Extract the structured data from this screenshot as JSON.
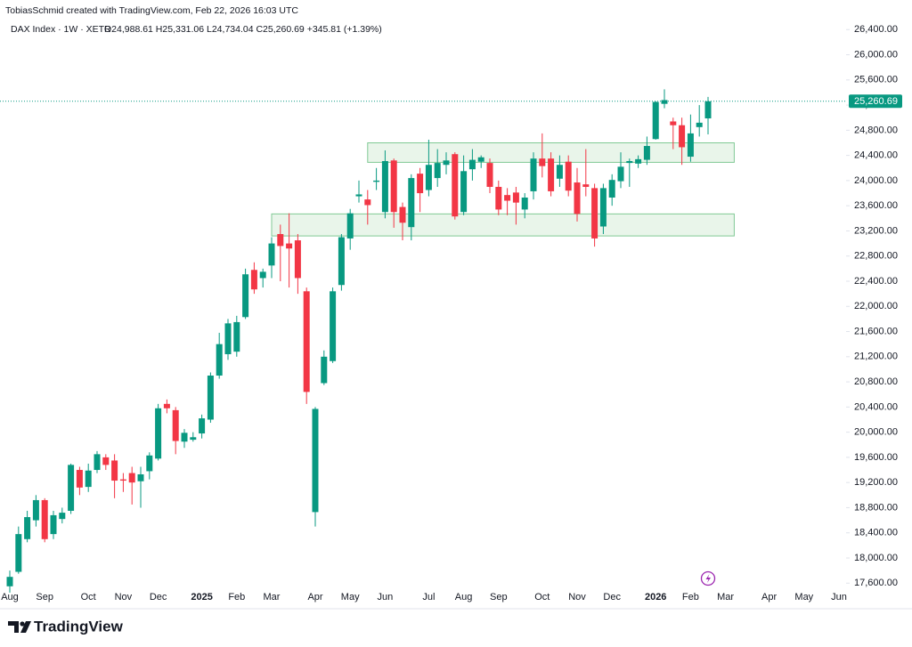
{
  "header": {
    "credit": "TobiasSchmid created with TradingView.com, Feb 22, 2026 16:03 UTC"
  },
  "chart_data": {
    "type": "candlestick",
    "legend": {
      "symbol": "DAX Index · 1W · XETR",
      "ohlc": "O24,988.61 H25,331.06 L24,734.04 C25,260.69 +345.81 (+1.39%)"
    },
    "categories": [
      "Aug",
      null,
      null,
      null,
      "Sep",
      null,
      null,
      null,
      null,
      "Oct",
      null,
      null,
      null,
      "Nov",
      null,
      null,
      null,
      "Dec",
      null,
      null,
      null,
      null,
      "2025",
      null,
      null,
      null,
      "Feb",
      null,
      null,
      null,
      "Mar",
      null,
      null,
      null,
      null,
      "Apr",
      null,
      null,
      null,
      "May",
      null,
      null,
      null,
      "Jun",
      null,
      null,
      null,
      null,
      "Jul",
      null,
      null,
      null,
      "Aug",
      null,
      null,
      null,
      "Sep",
      null,
      null,
      null,
      null,
      "Oct",
      null,
      null,
      null,
      "Nov",
      null,
      null,
      null,
      "Dec",
      null,
      null,
      null,
      null,
      "2026",
      null,
      null,
      null,
      "Feb",
      null,
      null,
      null,
      "Mar",
      null,
      null,
      null,
      null,
      "Apr",
      null,
      null,
      null,
      "May",
      null,
      null,
      null,
      "Jun"
    ],
    "open": [
      17550,
      17780,
      18300,
      18600,
      18920,
      18380,
      18620,
      18750,
      19400,
      19130,
      19400,
      19600,
      19550,
      19250,
      19350,
      19220,
      19380,
      19580,
      20450,
      20350,
      19850,
      19880,
      19980,
      20200,
      20900,
      21240,
      21280,
      21830,
      22580,
      22450,
      22650,
      23150,
      23000,
      23050,
      22240,
      18730,
      20780,
      21130,
      22340,
      23080,
      23750,
      23700,
      23980,
      23500,
      24320,
      23580,
      23260,
      24110,
      23850,
      24040,
      24250,
      24420,
      23500,
      24180,
      24300,
      24280,
      23900,
      23770,
      23810,
      23540,
      23830,
      24350,
      24350,
      24030,
      24300,
      23970,
      23940,
      23880,
      23270,
      23730,
      23990,
      24280,
      24270,
      24330,
      24660,
      25220,
      24940,
      24880,
      24380,
      24850,
      24988.61,
      null,
      null,
      null,
      null,
      null,
      null,
      null,
      null,
      null,
      null,
      null,
      null,
      null,
      null,
      null
    ],
    "high": [
      17800,
      18500,
      18750,
      19000,
      18950,
      18750,
      18800,
      19500,
      19450,
      19500,
      19700,
      19650,
      19650,
      19350,
      19450,
      19450,
      19680,
      20450,
      20520,
      20400,
      20050,
      20000,
      20280,
      20950,
      21580,
      21800,
      21850,
      22600,
      22700,
      22600,
      23100,
      23300,
      23480,
      23150,
      22300,
      20400,
      21300,
      22300,
      23150,
      23550,
      24000,
      23850,
      24200,
      24480,
      24350,
      23650,
      24100,
      24200,
      24650,
      24500,
      24450,
      24450,
      24400,
      24500,
      24400,
      24350,
      24000,
      23880,
      23900,
      23800,
      24450,
      24750,
      24450,
      24400,
      24400,
      24200,
      24500,
      23950,
      23950,
      24100,
      24450,
      24350,
      24400,
      24700,
      25260,
      25450,
      25000,
      25000,
      25050,
      25200,
      25331.06,
      null,
      null,
      null,
      null,
      null,
      null,
      null,
      null,
      null,
      null,
      null,
      null,
      null,
      null,
      null
    ],
    "low": [
      17450,
      17750,
      18250,
      18500,
      18250,
      18300,
      18550,
      18700,
      19000,
      19050,
      19350,
      19400,
      18950,
      19050,
      18850,
      18800,
      19250,
      19550,
      20300,
      19650,
      19750,
      19850,
      19900,
      20150,
      20850,
      21150,
      21200,
      21800,
      22200,
      22300,
      22450,
      22400,
      22300,
      22200,
      20450,
      18500,
      20750,
      21100,
      22250,
      22900,
      23650,
      23300,
      23850,
      23400,
      23250,
      23050,
      23050,
      23500,
      23750,
      23900,
      24100,
      23380,
      23450,
      24000,
      24200,
      23800,
      23450,
      23450,
      23300,
      23400,
      23700,
      24050,
      23750,
      23900,
      23750,
      23350,
      23750,
      22950,
      23150,
      23600,
      23880,
      23900,
      24200,
      24250,
      24650,
      25150,
      24500,
      24250,
      24300,
      24700,
      24734.04,
      null,
      null,
      null,
      null,
      null,
      null,
      null,
      null,
      null,
      null,
      null,
      null,
      null,
      null,
      null
    ],
    "close": [
      17700,
      18380,
      18650,
      18920,
      18300,
      18680,
      18720,
      19480,
      19120,
      19390,
      19650,
      19480,
      19230,
      19230,
      19200,
      19330,
      19630,
      20380,
      20380,
      19860,
      19990,
      19920,
      20220,
      20900,
      21400,
      21730,
      21750,
      22510,
      22270,
      22550,
      23000,
      22960,
      22920,
      22450,
      20640,
      20370,
      21200,
      22240,
      23100,
      23480,
      23780,
      23610,
      24000,
      24310,
      23500,
      23330,
      24040,
      23800,
      24250,
      24280,
      24320,
      23430,
      24150,
      24330,
      24370,
      23900,
      23540,
      23680,
      23650,
      23730,
      24350,
      24230,
      23830,
      24250,
      23840,
      23470,
      23900,
      23080,
      23880,
      24010,
      24220,
      24310,
      24340,
      24550,
      25250,
      25280,
      24880,
      24530,
      24750,
      24920,
      25260.69,
      null,
      null,
      null,
      null,
      null,
      null,
      null,
      null,
      null,
      null,
      null,
      null,
      null,
      null,
      null
    ],
    "up_color": "#089981",
    "down_color": "#f23645",
    "zones": [
      {
        "start": 41,
        "end": 83,
        "low": 24290,
        "high": 24600
      },
      {
        "start": 30,
        "end": 83,
        "low": 23120,
        "high": 23470
      }
    ],
    "last_price": {
      "value": 25260.69,
      "label": "25,260.69"
    },
    "ylim": [
      17250,
      26800
    ],
    "yticks": [
      {
        "value": 17600,
        "label": "17,600.00"
      },
      {
        "value": 18000,
        "label": "18,000.00"
      },
      {
        "value": 18400,
        "label": "18,400.00"
      },
      {
        "value": 18800,
        "label": "18,800.00"
      },
      {
        "value": 19200,
        "label": "19,200.00"
      },
      {
        "value": 19600,
        "label": "19,600.00"
      },
      {
        "value": 20000,
        "label": "20,000.00"
      },
      {
        "value": 20400,
        "label": "20,400.00"
      },
      {
        "value": 20800,
        "label": "20,800.00"
      },
      {
        "value": 21200,
        "label": "21,200.00"
      },
      {
        "value": 21600,
        "label": "21,600.00"
      },
      {
        "value": 22000,
        "label": "22,000.00"
      },
      {
        "value": 22400,
        "label": "22,400.00"
      },
      {
        "value": 22800,
        "label": "22,800.00"
      },
      {
        "value": 23200,
        "label": "23,200.00"
      },
      {
        "value": 23600,
        "label": "23,600.00"
      },
      {
        "value": 24000,
        "label": "24,000.00"
      },
      {
        "value": 24400,
        "label": "24,400.00"
      },
      {
        "value": 24800,
        "label": "24,800.00"
      },
      {
        "value": 25200,
        "label": "25,200.00"
      },
      {
        "value": 25600,
        "label": "25,600.00"
      },
      {
        "value": 26000,
        "label": "26,000.00"
      },
      {
        "value": 26400,
        "label": "26,400.00"
      }
    ],
    "grid": false
  },
  "footer": {
    "brand": "TradingView"
  }
}
